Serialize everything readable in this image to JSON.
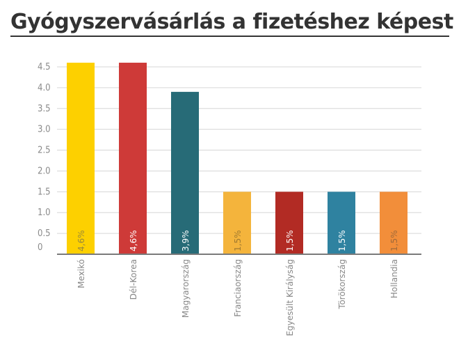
{
  "chart_data": {
    "type": "bar",
    "title": "Gyógyszervásárlás a fizetéshez képest",
    "categories": [
      "Mexikó",
      "Dél-Korea",
      "Magyarország",
      "Franciaország",
      "Egyesült Királyság",
      "Törökország",
      "Hollandia"
    ],
    "values": [
      4.6,
      4.6,
      3.9,
      1.5,
      1.5,
      1.5,
      1.5
    ],
    "data_labels": [
      "4,6%",
      "4,6%",
      "3,9%",
      "1,5%",
      "1,5%",
      "1,5%",
      "1,5%"
    ],
    "colors": [
      "#FDD000",
      "#CE3A38",
      "#276B77",
      "#F4B43C",
      "#B22B24",
      "#2F82A0",
      "#F28E3A"
    ],
    "label_colors": [
      "#9a8a3a",
      "#ffffff",
      "#ffffff",
      "#a07a30",
      "#ffffff",
      "#ffffff",
      "#a06a3a"
    ],
    "yticks": [
      "0",
      "0.5",
      "1.0",
      "1.5",
      "2.0",
      "2.5",
      "3.0",
      "3.5",
      "4.0",
      "4.5"
    ],
    "ylim": [
      0,
      4.5
    ],
    "grid": true,
    "legend": "none"
  }
}
